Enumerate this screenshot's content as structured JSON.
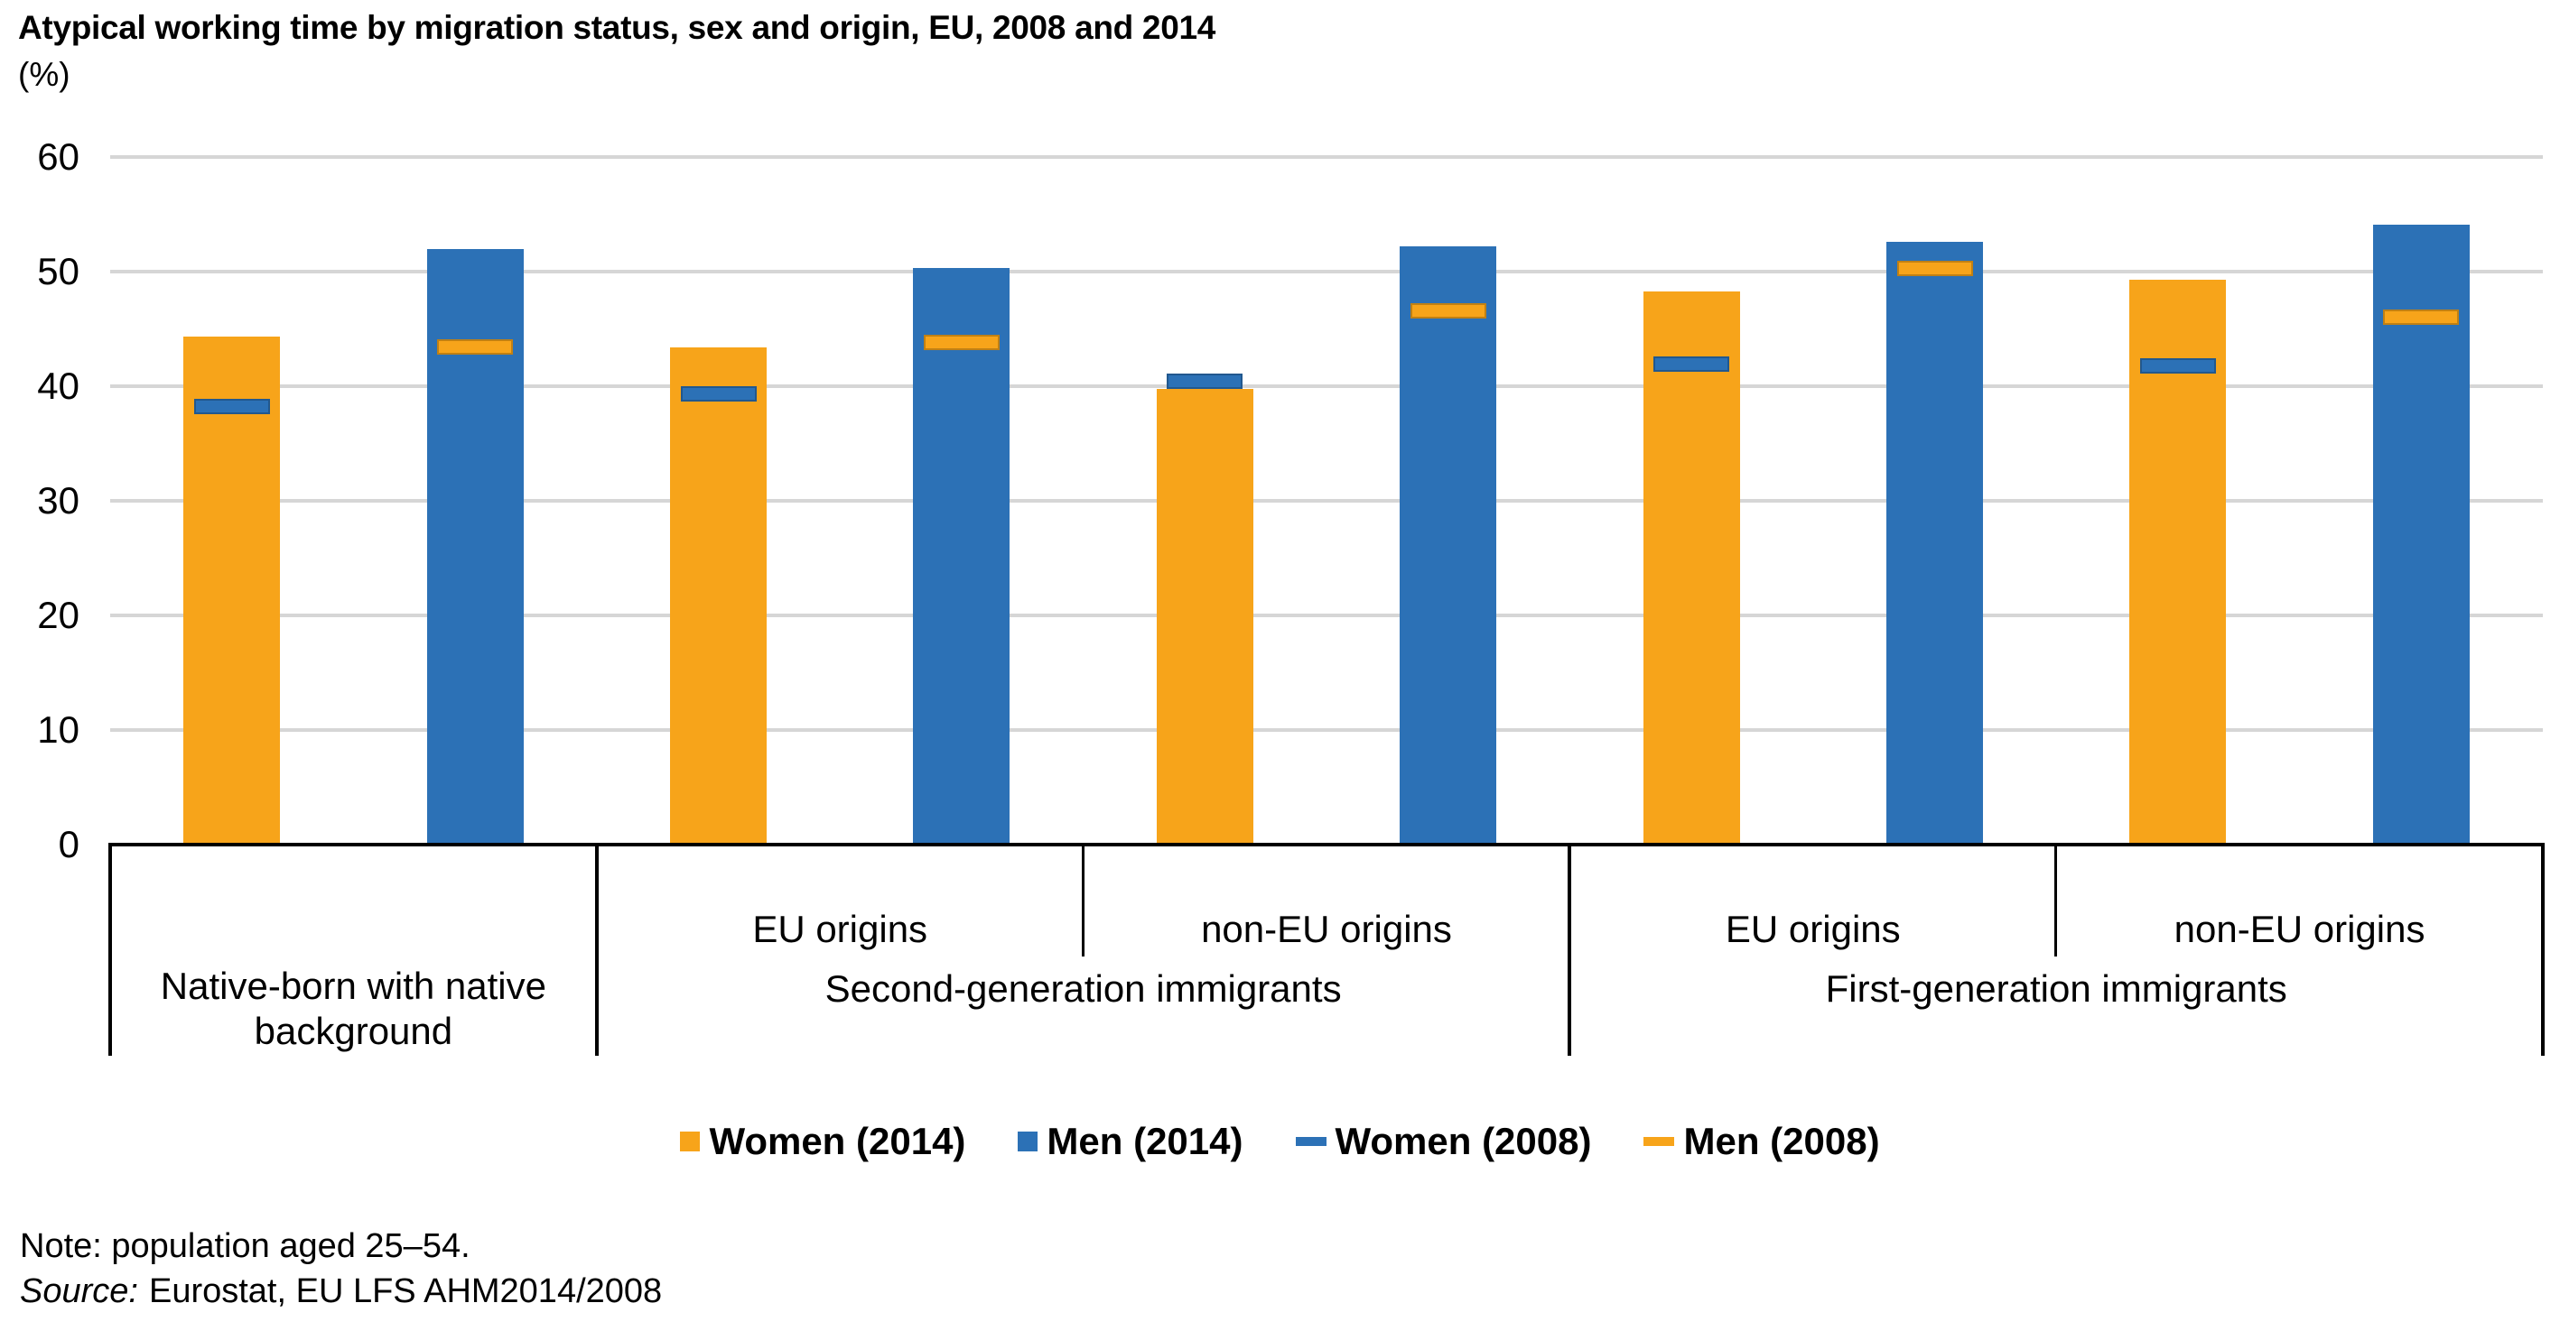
{
  "title": "Atypical working time by migration status, sex and origin, EU, 2008 and 2014",
  "unit_label": "(%)",
  "chart_data": {
    "type": "bar",
    "ylim": [
      0,
      60
    ],
    "yticks": [
      0,
      10,
      20,
      30,
      40,
      50,
      60
    ],
    "grid": true,
    "legend_position": "bottom",
    "categories": [
      "Native-born with native background",
      "EU origins",
      "non-EU origins",
      "EU origins",
      "non-EU origins"
    ],
    "series": [
      {
        "name": "Women (2014)",
        "marker": "square",
        "color": "#F7A41A",
        "values": [
          44.3,
          43.4,
          39.8,
          48.3,
          49.3
        ]
      },
      {
        "name": "Men (2014)",
        "marker": "square",
        "color": "#2C71B6",
        "values": [
          52.0,
          50.3,
          52.2,
          52.6,
          54.1
        ]
      },
      {
        "name": "Women (2008)",
        "marker": "dash",
        "color": "#2C71B6",
        "values": [
          38.2,
          39.3,
          40.4,
          41.9,
          41.8
        ]
      },
      {
        "name": "Men (2008)",
        "marker": "dash",
        "color": "#F7A41A",
        "values": [
          43.4,
          43.8,
          46.6,
          50.3,
          46.0
        ]
      }
    ],
    "axis_table": {
      "origin_row": [
        "",
        "EU origins",
        "non-EU origins",
        "EU origins",
        "non-EU origins"
      ],
      "group_row": [
        {
          "label": "Native-born with native background",
          "start": 0,
          "end": 1,
          "two_rows": true
        },
        {
          "label": "Second-generation immigrants",
          "start": 1,
          "end": 3
        },
        {
          "label": "First-generation immigrants",
          "start": 3,
          "end": 5
        }
      ]
    }
  },
  "colors": {
    "women": "#F7A41A",
    "men": "#2C71B6",
    "gridline": "#D6D6D6",
    "axis_line": "#000000"
  },
  "notes": {
    "note": "Note: population aged 25–54.",
    "source_label": "Source:",
    "source_text": "Eurostat, EU LFS AHM2014/2008"
  }
}
